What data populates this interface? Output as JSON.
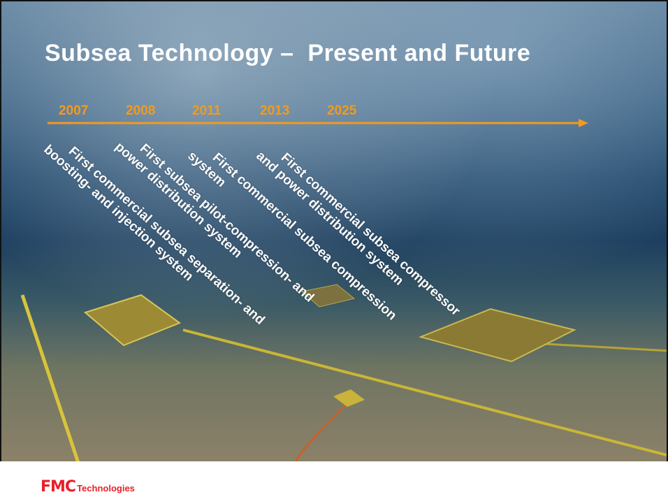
{
  "title": "Subsea Technology –  Present and Future",
  "timeline": {
    "years": [
      "2007",
      "2008",
      "2011",
      "2013",
      "2025"
    ]
  },
  "milestones": [
    {
      "lines": [
        "First commercial subsea separation- and",
        "boosting- and injection system"
      ]
    },
    {
      "lines": [
        "First subsea pilot-compression- and",
        "power distribution system"
      ]
    },
    {
      "lines": [
        "First commercial subsea compression",
        "system"
      ]
    },
    {
      "lines": [
        "First commercial subsea compressor",
        "and power distribution system"
      ]
    }
  ],
  "footer": {
    "logo": "FMC",
    "logo_suffix": "Technologies"
  }
}
